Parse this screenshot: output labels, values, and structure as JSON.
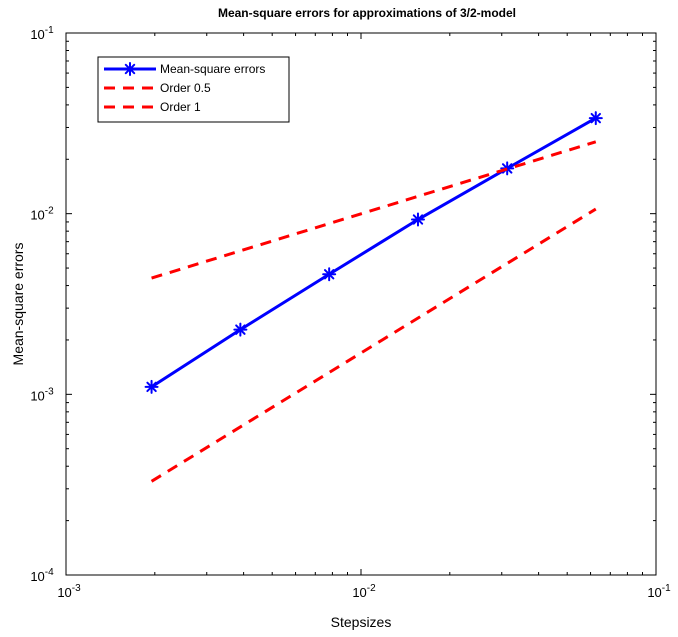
{
  "chart_data": {
    "type": "line",
    "title": "Mean-square errors for approximations of 3/2-model",
    "xlabel": "Stepsizes",
    "ylabel": "Mean-square errors",
    "xscale": "log",
    "yscale": "log",
    "xlim": [
      0.001,
      0.1
    ],
    "ylim": [
      0.0001,
      0.1
    ],
    "x_ticks": [
      {
        "value": 0.001,
        "base": "10",
        "exp": "-3"
      },
      {
        "value": 0.01,
        "base": "10",
        "exp": "-2"
      },
      {
        "value": 0.1,
        "base": "10",
        "exp": "-1"
      }
    ],
    "y_ticks": [
      {
        "value": 0.0001,
        "base": "10",
        "exp": "-4"
      },
      {
        "value": 0.001,
        "base": "10",
        "exp": "-3"
      },
      {
        "value": 0.01,
        "base": "10",
        "exp": "-2"
      },
      {
        "value": 0.1,
        "base": "10",
        "exp": "-1"
      }
    ],
    "grid": false,
    "legend_position": "top-left",
    "series": [
      {
        "name": "Mean-square errors",
        "color": "#0000ff",
        "style": "solid",
        "marker": "asterisk",
        "x": [
          0.00195,
          0.0039,
          0.0078,
          0.0156,
          0.0313,
          0.0625
        ],
        "y": [
          0.0011,
          0.00228,
          0.00462,
          0.00928,
          0.0178,
          0.0338
        ]
      },
      {
        "name": "Order 0.5",
        "color": "#ff0000",
        "style": "dashed",
        "marker": "none",
        "x": [
          0.00195,
          0.0625
        ],
        "y": [
          0.0044,
          0.025
        ]
      },
      {
        "name": "Order 1",
        "color": "#ff0000",
        "style": "dashed",
        "marker": "none",
        "x": [
          0.00195,
          0.0625
        ],
        "y": [
          0.00033,
          0.0106
        ]
      }
    ]
  }
}
